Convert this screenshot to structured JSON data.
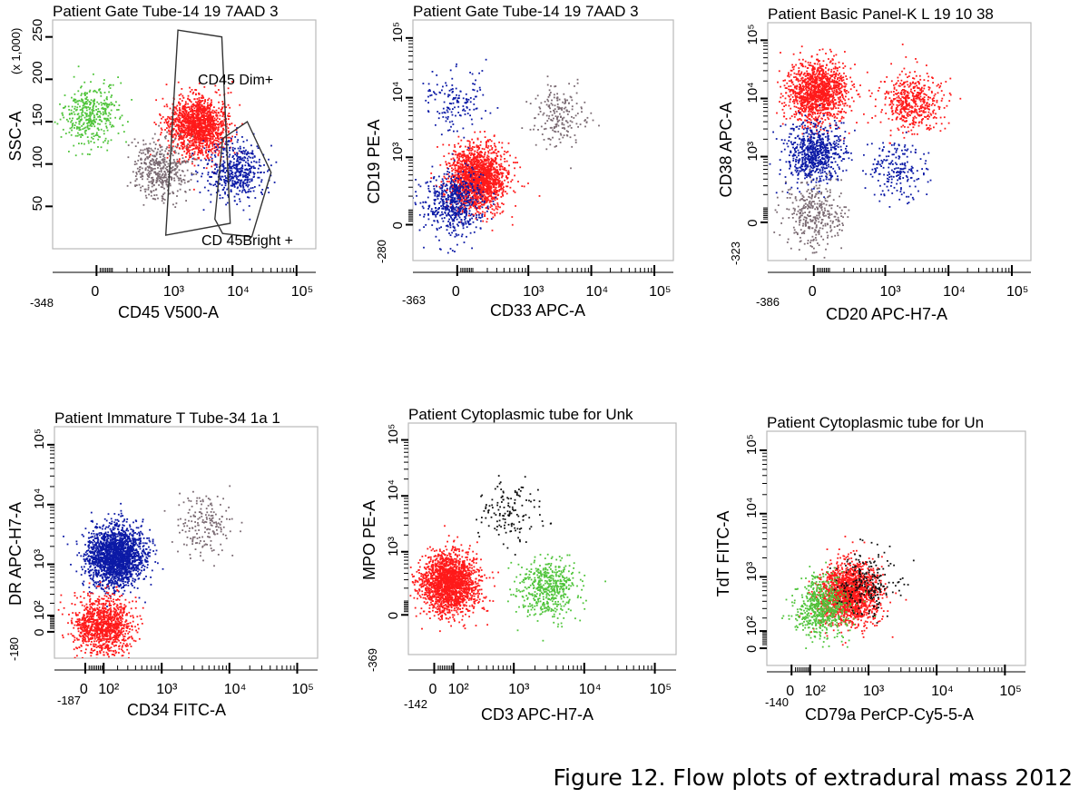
{
  "figure_caption": "Figure 12. Flow plots of extradural mass 2012",
  "colors": {
    "red": "#ff1a1a",
    "blue": "#0c1aa6",
    "green": "#4fc43a",
    "grey": "#7a6a72",
    "black": "#111111",
    "purple": "#7a3a7a"
  },
  "chart_data": [
    {
      "type": "scatter",
      "title": "Patient Gate Tube-14 19 7AAD 3",
      "xlabel": "CD45 V500-A",
      "ylabel": "SSC-A",
      "y_multiplier": "(x 1,000)",
      "x_scale": "biexponential",
      "y_scale": "linear",
      "x_ticks": [
        {
          "v": 0,
          "label": "0"
        },
        {
          "v": 1000,
          "label": "10³"
        },
        {
          "v": 10000,
          "label": "10⁴"
        },
        {
          "v": 100000,
          "label": "10⁵"
        }
      ],
      "x_min_label": "-348",
      "y_ticks": [
        {
          "v": 50,
          "label": "50"
        },
        {
          "v": 100,
          "label": "100"
        },
        {
          "v": 150,
          "label": "150"
        },
        {
          "v": 200,
          "label": "200"
        },
        {
          "v": 250,
          "label": "250"
        }
      ],
      "gates": [
        {
          "name": "CD45 Dim+"
        },
        {
          "name": "CD 45Bright +"
        }
      ],
      "populations": [
        {
          "color": "red",
          "x_center": 2800,
          "y_center": 145,
          "count": 1500
        },
        {
          "color": "blue",
          "x_center": 10500,
          "y_center": 92,
          "count": 500
        },
        {
          "color": "green",
          "x_center": -30,
          "y_center": 160,
          "count": 400
        },
        {
          "color": "grey",
          "x_center": 700,
          "y_center": 95,
          "count": 450
        }
      ]
    },
    {
      "type": "scatter",
      "title": "Patient Gate Tube-14 19 7AAD 3",
      "xlabel": "CD33 APC-A",
      "ylabel": "CD19 PE-A",
      "x_scale": "biexponential",
      "y_scale": "biexponential",
      "x_ticks": [
        {
          "v": 0,
          "label": "0"
        },
        {
          "v": 1000,
          "label": "10³"
        },
        {
          "v": 10000,
          "label": "10⁴"
        },
        {
          "v": 100000,
          "label": "10⁵"
        }
      ],
      "x_min_label": "-363",
      "y_ticks": [
        {
          "v": 0,
          "label": "0"
        },
        {
          "v": 1000,
          "label": "10³"
        },
        {
          "v": 10000,
          "label": "10⁴"
        },
        {
          "v": 100000,
          "label": "10⁵"
        }
      ],
      "y_min_label": "-280",
      "populations": [
        {
          "color": "red",
          "x_center": 120,
          "y_center": 450,
          "count": 1800
        },
        {
          "color": "blue",
          "x_center": -20,
          "y_center": 150,
          "count": 600
        },
        {
          "color": "blue",
          "x_center": -10,
          "y_center": 9000,
          "count": 150
        },
        {
          "color": "grey",
          "x_center": 3000,
          "y_center": 5000,
          "count": 200
        }
      ]
    },
    {
      "type": "scatter",
      "title": "Patient Basic Panel-K L 19 10 38",
      "xlabel": "CD20 APC-H7-A",
      "ylabel": "CD38 APC-A",
      "x_scale": "biexponential",
      "y_scale": "biexponential",
      "x_ticks": [
        {
          "v": 0,
          "label": "0"
        },
        {
          "v": 1000,
          "label": "10³"
        },
        {
          "v": 10000,
          "label": "10⁴"
        },
        {
          "v": 100000,
          "label": "10⁵"
        }
      ],
      "x_min_label": "-386",
      "y_ticks": [
        {
          "v": 0,
          "label": "0"
        },
        {
          "v": 1000,
          "label": "10³"
        },
        {
          "v": 10000,
          "label": "10⁴"
        },
        {
          "v": 100000,
          "label": "10⁵"
        }
      ],
      "y_min_label": "-323",
      "populations": [
        {
          "color": "red",
          "x_center": 20,
          "y_center": 13000,
          "count": 1300
        },
        {
          "color": "red",
          "x_center": 2500,
          "y_center": 9000,
          "count": 500
        },
        {
          "color": "blue",
          "x_center": 0,
          "y_center": 1200,
          "count": 700
        },
        {
          "color": "grey",
          "x_center": 0,
          "y_center": 50,
          "count": 350
        },
        {
          "color": "blue",
          "x_center": 1500,
          "y_center": 600,
          "count": 200
        }
      ]
    },
    {
      "type": "scatter",
      "title": "Patient Immature T Tube-34 1a 1",
      "xlabel": "CD34 FITC-A",
      "ylabel": "DR APC-H7-A",
      "x_scale": "biexponential",
      "y_scale": "biexponential",
      "x_ticks": [
        {
          "v": 0,
          "label": "0"
        },
        {
          "v": 100,
          "label": "10²"
        },
        {
          "v": 1000,
          "label": "10³"
        },
        {
          "v": 10000,
          "label": "10⁴"
        },
        {
          "v": 100000,
          "label": "10⁵"
        }
      ],
      "x_min_label": "-187",
      "y_ticks": [
        {
          "v": 0,
          "label": "0"
        },
        {
          "v": 100,
          "label": "10²"
        },
        {
          "v": 1000,
          "label": "10³"
        },
        {
          "v": 10000,
          "label": "10⁴"
        },
        {
          "v": 100000,
          "label": "10⁵"
        }
      ],
      "y_min_label": "-180",
      "populations": [
        {
          "color": "blue",
          "x_center": 180,
          "y_center": 1400,
          "count": 2000
        },
        {
          "color": "red",
          "x_center": 90,
          "y_center": 40,
          "count": 1100
        },
        {
          "color": "grey",
          "x_center": 4000,
          "y_center": 4500,
          "count": 180
        }
      ]
    },
    {
      "type": "scatter",
      "title": "Patient Cytoplasmic tube for Unk",
      "xlabel": "CD3 APC-H7-A",
      "ylabel": "MPO PE-A",
      "x_scale": "biexponential",
      "y_scale": "biexponential",
      "x_ticks": [
        {
          "v": 0,
          "label": "0"
        },
        {
          "v": 100,
          "label": "10²"
        },
        {
          "v": 1000,
          "label": "10³"
        },
        {
          "v": 10000,
          "label": "10⁴"
        },
        {
          "v": 100000,
          "label": "10⁵"
        }
      ],
      "x_min_label": "-142",
      "y_ticks": [
        {
          "v": 0,
          "label": "0"
        },
        {
          "v": 1000,
          "label": "10³"
        },
        {
          "v": 10000,
          "label": "10⁴"
        },
        {
          "v": 100000,
          "label": "10⁵"
        }
      ],
      "y_min_label": "-369",
      "populations": [
        {
          "color": "red",
          "x_center": 70,
          "y_center": 260,
          "count": 1900
        },
        {
          "color": "green",
          "x_center": 3000,
          "y_center": 200,
          "count": 500
        },
        {
          "color": "black",
          "x_center": 900,
          "y_center": 5000,
          "count": 140
        }
      ]
    },
    {
      "type": "scatter",
      "title": "Patient Cytoplasmic tube for Un",
      "xlabel": "CD79a PerCP-Cy5-5-A",
      "ylabel": "TdT FITC-A",
      "x_scale": "biexponential",
      "y_scale": "biexponential",
      "x_ticks": [
        {
          "v": 0,
          "label": "0"
        },
        {
          "v": 100,
          "label": "10²"
        },
        {
          "v": 1000,
          "label": "10³"
        },
        {
          "v": 10000,
          "label": "10⁴"
        },
        {
          "v": 100000,
          "label": "10⁵"
        }
      ],
      "x_min_label": "-140",
      "y_ticks": [
        {
          "v": 0,
          "label": "0"
        },
        {
          "v": 100,
          "label": "10²"
        },
        {
          "v": 1000,
          "label": "10³"
        },
        {
          "v": 10000,
          "label": "10⁴"
        },
        {
          "v": 100000,
          "label": "10⁵"
        }
      ],
      "populations": [
        {
          "color": "red",
          "x_center": 500,
          "y_center": 550,
          "count": 1700
        },
        {
          "color": "green",
          "x_center": 170,
          "y_center": 320,
          "count": 600
        },
        {
          "color": "black",
          "x_center": 900,
          "y_center": 800,
          "count": 220
        }
      ]
    }
  ]
}
